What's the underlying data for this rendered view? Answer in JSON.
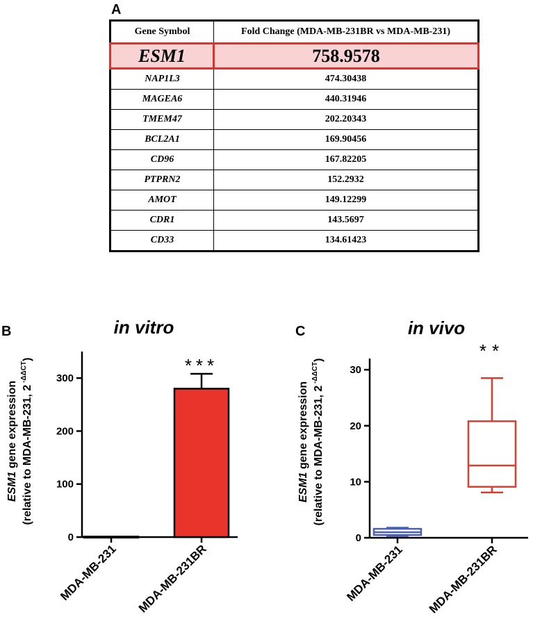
{
  "panel_labels": {
    "a": "A",
    "b": "B",
    "c": "C"
  },
  "table": {
    "headers": [
      "Gene Symbol",
      "Fold Change (MDA-MB-231BR vs  MDA-MB-231)"
    ],
    "rows": [
      {
        "gene": "ESM1",
        "value": "758.9578",
        "highlight": true
      },
      {
        "gene": "NAP1L3",
        "value": "474.30438"
      },
      {
        "gene": "MAGEA6",
        "value": "440.31946"
      },
      {
        "gene": "TMEM47",
        "value": "202.20343"
      },
      {
        "gene": "BCL2A1",
        "value": "169.90456"
      },
      {
        "gene": "CD96",
        "value": "167.82205"
      },
      {
        "gene": "PTPRN2",
        "value": "152.2932"
      },
      {
        "gene": "AMOT",
        "value": "149.12299"
      },
      {
        "gene": "CDR1",
        "value": "143.5697"
      },
      {
        "gene": "CD33",
        "value": "134.61423"
      }
    ],
    "highlight_color": "#e03030"
  },
  "chart_data": [
    {
      "type": "bar",
      "title": "in vitro",
      "categories": [
        "MDA-MB-231",
        "MDA-MB-231BR"
      ],
      "values": [
        1,
        280
      ],
      "error": [
        0,
        28
      ],
      "colors": [
        "#ffffff",
        "#e8342a"
      ],
      "ylim": [
        0,
        350
      ],
      "yticks": [
        0,
        100,
        200,
        300
      ],
      "ylabel_gene": "ESM1",
      "ylabel_rest": " gene expression",
      "ylabel2": "(relative to MDA-MB-231, 2",
      "ylabel2_sup": " -ΔΔCT",
      "ylabel2_end": ")",
      "significance": "***"
    },
    {
      "type": "box",
      "title": "in vivo",
      "categories": [
        "MDA-MB-231",
        "MDA-MB-231BR"
      ],
      "series": [
        {
          "name": "MDA-MB-231",
          "min": 0.3,
          "q1": 0.5,
          "median": 1.0,
          "q3": 1.6,
          "max": 1.8,
          "color": "#4a60b0"
        },
        {
          "name": "MDA-MB-231BR",
          "min": 8.1,
          "q1": 9.1,
          "median": 12.9,
          "q3": 20.8,
          "max": 28.5,
          "color": "#e03c2e"
        }
      ],
      "ylim": [
        0,
        32
      ],
      "yticks": [
        0,
        10,
        20,
        30
      ],
      "ylabel_gene": "ESM1",
      "ylabel_rest": " gene expression",
      "ylabel2": "(relative to MDA-MB-231, 2",
      "ylabel2_sup": " -ΔΔCT",
      "ylabel2_end": ")",
      "significance": "**"
    }
  ]
}
